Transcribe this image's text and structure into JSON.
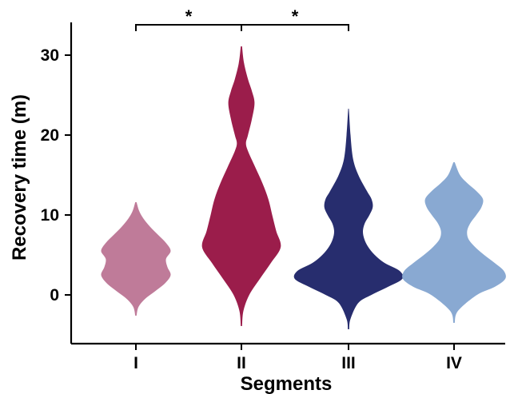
{
  "chart_data": {
    "type": "violin",
    "title": "",
    "xlabel": "Segments",
    "ylabel": "Recovery time (m)",
    "ylim": [
      -6,
      34
    ],
    "yticks": [
      0,
      10,
      20,
      30
    ],
    "grid": false,
    "legend": "none",
    "categories": [
      "I",
      "II",
      "III",
      "IV"
    ],
    "series": [
      {
        "category": "I",
        "color": "#bf7b99",
        "range": [
          -2.6,
          11.6
        ],
        "density": [
          [
            -2.6,
            0.01
          ],
          [
            -1.5,
            0.04
          ],
          [
            -0.5,
            0.14
          ],
          [
            0.5,
            0.3
          ],
          [
            1.5,
            0.45
          ],
          [
            2.5,
            0.53
          ],
          [
            3.5,
            0.48
          ],
          [
            4.5,
            0.46
          ],
          [
            5.5,
            0.53
          ],
          [
            6.5,
            0.46
          ],
          [
            7.5,
            0.34
          ],
          [
            8.5,
            0.22
          ],
          [
            9.5,
            0.12
          ],
          [
            10.5,
            0.05
          ],
          [
            11.6,
            0.01
          ]
        ]
      },
      {
        "category": "II",
        "color": "#9b1d4b",
        "range": [
          -3.9,
          31.1
        ],
        "density": [
          [
            -3.9,
            0.01
          ],
          [
            -2,
            0.03
          ],
          [
            0,
            0.12
          ],
          [
            2,
            0.28
          ],
          [
            4,
            0.45
          ],
          [
            6,
            0.6
          ],
          [
            8,
            0.53
          ],
          [
            10,
            0.47
          ],
          [
            12,
            0.41
          ],
          [
            14,
            0.32
          ],
          [
            16,
            0.21
          ],
          [
            18,
            0.1
          ],
          [
            19,
            0.07
          ],
          [
            20,
            0.1
          ],
          [
            22,
            0.16
          ],
          [
            24,
            0.2
          ],
          [
            25.5,
            0.16
          ],
          [
            27,
            0.1
          ],
          [
            29,
            0.04
          ],
          [
            31.1,
            0.01
          ]
        ]
      },
      {
        "category": "III",
        "color": "#272d6e",
        "range": [
          -4.3,
          23.3
        ],
        "density": [
          [
            -4.3,
            0.01
          ],
          [
            -3,
            0.03
          ],
          [
            -1,
            0.15
          ],
          [
            0,
            0.35
          ],
          [
            1,
            0.6
          ],
          [
            2,
            0.82
          ],
          [
            3,
            0.78
          ],
          [
            4,
            0.55
          ],
          [
            5,
            0.4
          ],
          [
            6,
            0.3
          ],
          [
            7,
            0.24
          ],
          [
            8,
            0.22
          ],
          [
            9,
            0.25
          ],
          [
            10,
            0.32
          ],
          [
            11,
            0.37
          ],
          [
            12,
            0.35
          ],
          [
            13,
            0.28
          ],
          [
            15,
            0.15
          ],
          [
            17,
            0.07
          ],
          [
            20,
            0.03
          ],
          [
            23.3,
            0.005
          ]
        ]
      },
      {
        "category": "IV",
        "color": "#89a9d2",
        "range": [
          -3.5,
          16.6
        ],
        "density": [
          [
            -3.5,
            0.01
          ],
          [
            -2,
            0.06
          ],
          [
            0,
            0.35
          ],
          [
            1,
            0.62
          ],
          [
            2,
            0.78
          ],
          [
            3,
            0.76
          ],
          [
            4,
            0.62
          ],
          [
            5,
            0.46
          ],
          [
            6,
            0.32
          ],
          [
            7,
            0.22
          ],
          [
            8,
            0.2
          ],
          [
            9,
            0.25
          ],
          [
            10,
            0.34
          ],
          [
            11,
            0.42
          ],
          [
            12,
            0.44
          ],
          [
            13,
            0.34
          ],
          [
            14,
            0.2
          ],
          [
            15,
            0.09
          ],
          [
            16.6,
            0.01
          ]
        ]
      }
    ],
    "annotations": [
      {
        "type": "significance",
        "from": "I",
        "to": "II",
        "label": "*"
      },
      {
        "type": "significance",
        "from": "II",
        "to": "III",
        "label": "*"
      }
    ]
  }
}
